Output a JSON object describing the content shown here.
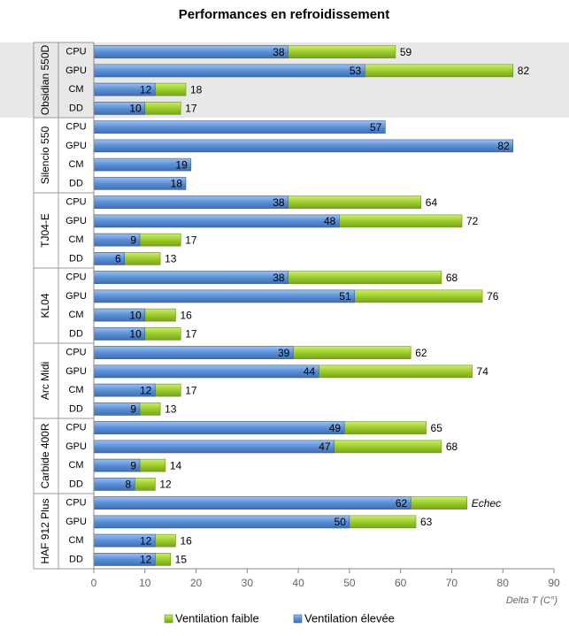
{
  "chart_data": {
    "type": "bar",
    "orientation": "horizontal",
    "title": "Performances en refroidissement",
    "groups": [
      "Obsidian 550D",
      "Silencio 550",
      "TJ04-E",
      "KL04",
      "Arc Midi",
      "Carbide 400R",
      "HAF 912 Plus"
    ],
    "categories": [
      "CPU",
      "GPU",
      "CM",
      "DD",
      "CPU",
      "GPU",
      "CM",
      "DD",
      "CPU",
      "GPU",
      "CM",
      "DD",
      "CPU",
      "GPU",
      "CM",
      "DD",
      "CPU",
      "GPU",
      "CM",
      "DD",
      "CPU",
      "GPU",
      "CM",
      "DD",
      "CPU",
      "GPU",
      "CM",
      "DD"
    ],
    "series": [
      {
        "name": "Ventilation faible",
        "color": "#9ccc2c",
        "values": [
          59,
          82,
          18,
          17,
          null,
          null,
          null,
          null,
          64,
          72,
          17,
          13,
          68,
          76,
          16,
          17,
          62,
          74,
          17,
          13,
          65,
          68,
          14,
          12,
          73,
          63,
          16,
          15
        ],
        "value_labels": [
          null,
          null,
          null,
          null,
          null,
          null,
          null,
          null,
          null,
          null,
          null,
          null,
          null,
          null,
          null,
          null,
          null,
          null,
          null,
          null,
          null,
          null,
          null,
          null,
          "Echec",
          null,
          null,
          null
        ]
      },
      {
        "name": "Ventilation élevée",
        "color": "#5b8fd6",
        "values": [
          38,
          53,
          12,
          10,
          57,
          82,
          19,
          18,
          38,
          48,
          9,
          6,
          38,
          51,
          10,
          10,
          39,
          44,
          12,
          9,
          49,
          47,
          9,
          8,
          62,
          50,
          12,
          12
        ]
      }
    ],
    "xlim": [
      0,
      90
    ],
    "xticks": [
      0,
      10,
      20,
      30,
      40,
      50,
      60,
      70,
      80,
      90
    ],
    "xlabel": "Delta T (C°)",
    "highlight_group": 0,
    "grid": false
  }
}
